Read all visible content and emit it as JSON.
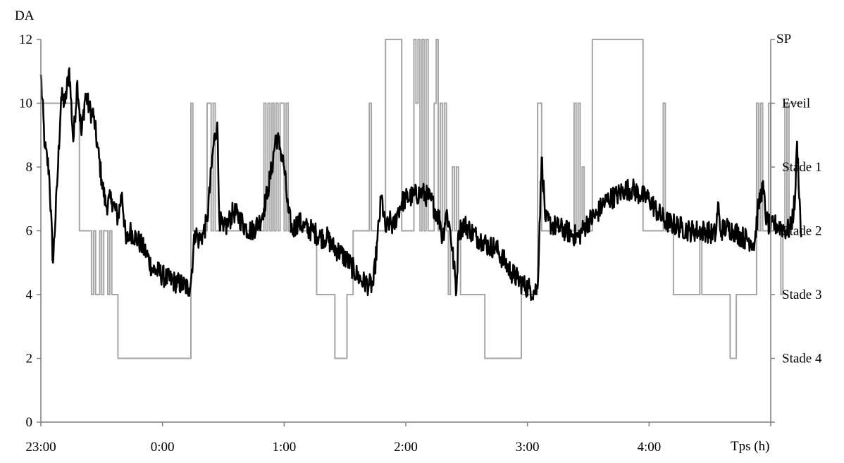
{
  "chart_data": {
    "type": "line",
    "title": "",
    "ylabel": "DA",
    "xlabel": "Tps (h)",
    "right_axis_title": "SP",
    "ylim": [
      0,
      12
    ],
    "xlim": [
      "23:00",
      "5:00"
    ],
    "grid": false,
    "legend": "none",
    "y_ticks": [
      "0",
      "2",
      "4",
      "6",
      "8",
      "10",
      "12"
    ],
    "x_ticks": [
      "23:00",
      "0:00",
      "1:00",
      "2:00",
      "3:00",
      "4:00"
    ],
    "right_ticks": [
      {
        "y": 10,
        "label": "Eveil"
      },
      {
        "y": 8,
        "label": "Stade 1"
      },
      {
        "y": 6,
        "label": "Stade 2"
      },
      {
        "y": 4,
        "label": "Stade 3"
      },
      {
        "y": 2,
        "label": "Stade 4"
      }
    ],
    "colors": {
      "da": "#000000",
      "sp": "#a6a6a6",
      "axis": "#7f7f7f"
    },
    "series": [
      {
        "key": "da",
        "noise": 0.35,
        "points": [
          [
            "23:00",
            10.9
          ],
          [
            "23:02",
            8.6
          ],
          [
            "23:04",
            7.9
          ],
          [
            "23:06",
            5.0
          ],
          [
            "23:08",
            7.4
          ],
          [
            "23:10",
            10.2
          ],
          [
            "23:12",
            10.0
          ],
          [
            "23:14",
            11.1
          ],
          [
            "23:16",
            8.8
          ],
          [
            "23:18",
            10.7
          ],
          [
            "23:20",
            9.0
          ],
          [
            "23:22",
            10.3
          ],
          [
            "23:24",
            9.8
          ],
          [
            "23:26",
            9.6
          ],
          [
            "23:28",
            8.6
          ],
          [
            "23:30",
            7.6
          ],
          [
            "23:32",
            6.8
          ],
          [
            "23:35",
            7.0
          ],
          [
            "23:38",
            6.4
          ],
          [
            "23:40",
            7.2
          ],
          [
            "23:42",
            5.6
          ],
          [
            "23:44",
            6.0
          ],
          [
            "23:48",
            5.7
          ],
          [
            "23:52",
            5.3
          ],
          [
            "23:55",
            4.8
          ],
          [
            "23:58",
            4.7
          ],
          [
            "0:02",
            4.5
          ],
          [
            "0:06",
            4.4
          ],
          [
            "0:10",
            4.3
          ],
          [
            "0:13",
            4.2
          ],
          [
            "0:14",
            4.4
          ],
          [
            "0:16",
            6.0
          ],
          [
            "0:18",
            5.7
          ],
          [
            "0:20",
            5.9
          ],
          [
            "0:22",
            6.3
          ],
          [
            "0:25",
            8.6
          ],
          [
            "0:27",
            9.4
          ],
          [
            "0:28",
            6.4
          ],
          [
            "0:30",
            6.0
          ],
          [
            "0:32",
            6.2
          ],
          [
            "0:35",
            6.6
          ],
          [
            "0:38",
            6.4
          ],
          [
            "0:41",
            6.1
          ],
          [
            "0:44",
            6.0
          ],
          [
            "0:48",
            6.3
          ],
          [
            "0:50",
            6.7
          ],
          [
            "0:52",
            7.3
          ],
          [
            "0:54",
            8.0
          ],
          [
            "0:56",
            9.0
          ],
          [
            "0:58",
            8.6
          ],
          [
            "1:00",
            8.0
          ],
          [
            "1:02",
            6.6
          ],
          [
            "1:04",
            6.0
          ],
          [
            "1:07",
            6.3
          ],
          [
            "1:10",
            6.1
          ],
          [
            "1:14",
            6.0
          ],
          [
            "1:18",
            5.8
          ],
          [
            "1:21",
            5.8
          ],
          [
            "1:24",
            5.5
          ],
          [
            "1:28",
            5.3
          ],
          [
            "1:32",
            5.0
          ],
          [
            "1:36",
            4.6
          ],
          [
            "1:39",
            4.4
          ],
          [
            "1:42",
            4.3
          ],
          [
            "1:44",
            4.3
          ],
          [
            "1:46",
            5.7
          ],
          [
            "1:48",
            7.1
          ],
          [
            "1:50",
            6.0
          ],
          [
            "1:52",
            6.3
          ],
          [
            "1:54",
            6.1
          ],
          [
            "1:56",
            6.6
          ],
          [
            "1:58",
            6.9
          ],
          [
            "2:00",
            7.0
          ],
          [
            "2:04",
            7.1
          ],
          [
            "2:08",
            7.2
          ],
          [
            "2:12",
            7.0
          ],
          [
            "2:15",
            6.6
          ],
          [
            "2:17",
            6.3
          ],
          [
            "2:18",
            5.7
          ],
          [
            "2:20",
            6.6
          ],
          [
            "2:22",
            6.0
          ],
          [
            "2:25",
            4.1
          ],
          [
            "2:26",
            6.0
          ],
          [
            "2:29",
            6.2
          ],
          [
            "2:32",
            6.0
          ],
          [
            "2:35",
            5.8
          ],
          [
            "2:38",
            5.7
          ],
          [
            "2:41",
            5.5
          ],
          [
            "2:44",
            5.5
          ],
          [
            "2:46",
            5.3
          ],
          [
            "2:49",
            5.0
          ],
          [
            "2:52",
            4.7
          ],
          [
            "2:55",
            4.5
          ],
          [
            "2:58",
            4.3
          ],
          [
            "3:01",
            4.2
          ],
          [
            "3:03",
            4.1
          ],
          [
            "3:05",
            4.2
          ],
          [
            "3:07",
            8.3
          ],
          [
            "3:09",
            6.3
          ],
          [
            "3:12",
            6.2
          ],
          [
            "3:15",
            6.1
          ],
          [
            "3:19",
            6.0
          ],
          [
            "3:22",
            5.9
          ],
          [
            "3:25",
            5.8
          ],
          [
            "3:28",
            6.1
          ],
          [
            "3:30",
            6.3
          ],
          [
            "3:34",
            6.5
          ],
          [
            "3:37",
            6.8
          ],
          [
            "3:40",
            7.0
          ],
          [
            "3:44",
            7.1
          ],
          [
            "3:48",
            7.3
          ],
          [
            "3:52",
            7.3
          ],
          [
            "3:56",
            7.1
          ],
          [
            "4:00",
            7.0
          ],
          [
            "4:04",
            6.6
          ],
          [
            "4:08",
            6.3
          ],
          [
            "4:12",
            6.2
          ],
          [
            "4:16",
            6.1
          ],
          [
            "4:20",
            6.0
          ],
          [
            "4:24",
            6.0
          ],
          [
            "4:28",
            6.0
          ],
          [
            "4:31",
            5.9
          ],
          [
            "4:33",
            5.9
          ],
          [
            "4:34",
            6.9
          ],
          [
            "4:35",
            6.0
          ],
          [
            "4:38",
            6.1
          ],
          [
            "4:42",
            6.0
          ],
          [
            "4:46",
            5.8
          ],
          [
            "4:50",
            5.7
          ],
          [
            "4:52",
            5.6
          ],
          [
            "4:54",
            6.8
          ],
          [
            "4:56",
            7.4
          ],
          [
            "4:58",
            6.3
          ],
          [
            "5:00",
            6.1
          ],
          [
            "5:03",
            6.2
          ],
          [
            "5:06",
            6.1
          ],
          [
            "5:08",
            6.0
          ],
          [
            "5:10",
            6.1
          ],
          [
            "5:12",
            7.0
          ],
          [
            "5:13",
            8.8
          ],
          [
            "5:15",
            5.8
          ]
        ]
      },
      {
        "key": "sp",
        "steps": [
          [
            "23:00",
            10
          ],
          [
            "23:10",
            10
          ],
          [
            "23:18",
            10
          ],
          [
            "23:19",
            6
          ],
          [
            "23:24",
            6
          ],
          [
            "23:25",
            4
          ],
          [
            "23:26",
            6
          ],
          [
            "23:27",
            4
          ],
          [
            "23:29",
            6
          ],
          [
            "23:30",
            4
          ],
          [
            "23:31",
            6
          ],
          [
            "23:33",
            4
          ],
          [
            "23:34",
            6
          ],
          [
            "23:35",
            4
          ],
          [
            "23:38",
            2
          ],
          [
            "0:13",
            2
          ],
          [
            "0:14",
            10
          ],
          [
            "0:15",
            6
          ],
          [
            "0:21",
            6
          ],
          [
            "0:22",
            10
          ],
          [
            "0:24",
            6
          ],
          [
            "0:25",
            10
          ],
          [
            "0:26",
            6
          ],
          [
            "0:49",
            6
          ],
          [
            "0:50",
            10
          ],
          [
            "0:51",
            6
          ],
          [
            "0:52",
            10
          ],
          [
            "0:53",
            6
          ],
          [
            "0:54",
            10
          ],
          [
            "0:55",
            6
          ],
          [
            "0:56",
            10
          ],
          [
            "0:57",
            6
          ],
          [
            "0:58",
            10
          ],
          [
            "1:00",
            6
          ],
          [
            "1:01",
            10
          ],
          [
            "1:02",
            6
          ],
          [
            "1:14",
            6
          ],
          [
            "1:16",
            4
          ],
          [
            "1:23",
            4
          ],
          [
            "1:25",
            2
          ],
          [
            "1:30",
            2
          ],
          [
            "1:31",
            4
          ],
          [
            "1:33",
            4
          ],
          [
            "1:34",
            6
          ],
          [
            "1:40",
            6
          ],
          [
            "1:42",
            10
          ],
          [
            "1:43",
            6
          ],
          [
            "1:48",
            6
          ],
          [
            "1:50",
            12
          ],
          [
            "1:57",
            12
          ],
          [
            "1:58",
            6
          ],
          [
            "2:03",
            6
          ],
          [
            "2:04",
            12
          ],
          [
            "2:05",
            10
          ],
          [
            "2:06",
            12
          ],
          [
            "2:07",
            6
          ],
          [
            "2:08",
            12
          ],
          [
            "2:09",
            6
          ],
          [
            "2:10",
            12
          ],
          [
            "2:11",
            6
          ],
          [
            "2:13",
            6
          ],
          [
            "2:14",
            10
          ],
          [
            "2:15",
            12
          ],
          [
            "2:16",
            6
          ],
          [
            "2:17",
            10
          ],
          [
            "2:18",
            6
          ],
          [
            "2:19",
            10
          ],
          [
            "2:20",
            6
          ],
          [
            "2:21",
            4
          ],
          [
            "2:22",
            6
          ],
          [
            "2:23",
            8
          ],
          [
            "2:24",
            6
          ],
          [
            "2:25",
            8
          ],
          [
            "2:26",
            6
          ],
          [
            "2:27",
            4
          ],
          [
            "2:38",
            4
          ],
          [
            "2:39",
            2
          ],
          [
            "2:56",
            2
          ],
          [
            "2:57",
            4
          ],
          [
            "3:04",
            4
          ],
          [
            "3:05",
            10
          ],
          [
            "3:07",
            6
          ],
          [
            "3:22",
            6
          ],
          [
            "3:23",
            10
          ],
          [
            "3:24",
            6
          ],
          [
            "3:25",
            10
          ],
          [
            "3:26",
            6
          ],
          [
            "3:27",
            8
          ],
          [
            "3:28",
            6
          ],
          [
            "3:31",
            6
          ],
          [
            "3:32",
            12
          ],
          [
            "3:56",
            12
          ],
          [
            "3:57",
            6
          ],
          [
            "4:06",
            6
          ],
          [
            "4:07",
            10
          ],
          [
            "4:08",
            6
          ],
          [
            "4:11",
            6
          ],
          [
            "4:12",
            4
          ],
          [
            "4:24",
            4
          ],
          [
            "4:25",
            6
          ],
          [
            "4:26",
            4
          ],
          [
            "4:39",
            4
          ],
          [
            "4:40",
            2
          ],
          [
            "4:42",
            2
          ],
          [
            "4:43",
            4
          ],
          [
            "4:52",
            4
          ],
          [
            "4:53",
            10
          ],
          [
            "4:54",
            6
          ],
          [
            "4:55",
            10
          ],
          [
            "4:56",
            6
          ],
          [
            "4:58",
            6
          ],
          [
            "4:59",
            10
          ],
          [
            "5:00",
            6
          ],
          [
            "5:04",
            6
          ],
          [
            "5:05",
            4
          ],
          [
            "5:06",
            6
          ],
          [
            "5:07",
            10
          ],
          [
            "5:08",
            6
          ],
          [
            "5:09",
            10
          ],
          [
            "5:15",
            10
          ]
        ]
      }
    ]
  }
}
